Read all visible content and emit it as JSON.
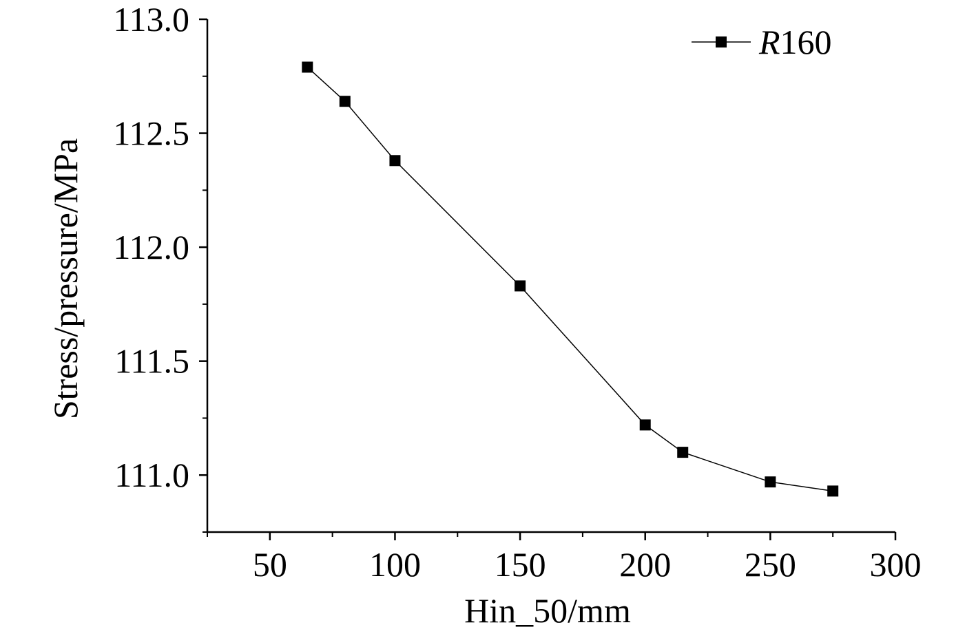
{
  "chart_data": {
    "type": "line",
    "title": "",
    "xlabel": "Hin_50/mm",
    "ylabel": "Stress/pressure/MPa",
    "xlim": [
      25,
      300
    ],
    "ylim": [
      110.75,
      113.0
    ],
    "x_ticks": [
      50,
      100,
      150,
      200,
      250,
      300
    ],
    "x_tick_labels": [
      "50",
      "100",
      "150",
      "200",
      "250",
      "300"
    ],
    "y_ticks": [
      111.0,
      111.5,
      112.0,
      112.5,
      113.0
    ],
    "y_tick_labels": [
      "111.0",
      "111.5",
      "112.0",
      "112.5",
      "113.0"
    ],
    "grid": false,
    "legend_position": "top-right",
    "series": [
      {
        "name_prefix": "R",
        "name_suffix": "160",
        "marker": "square",
        "color": "#000000",
        "x": [
          65,
          80,
          100,
          150,
          200,
          215,
          250,
          275
        ],
        "y": [
          112.79,
          112.64,
          112.38,
          111.83,
          111.22,
          111.1,
          110.97,
          110.93
        ]
      }
    ]
  }
}
